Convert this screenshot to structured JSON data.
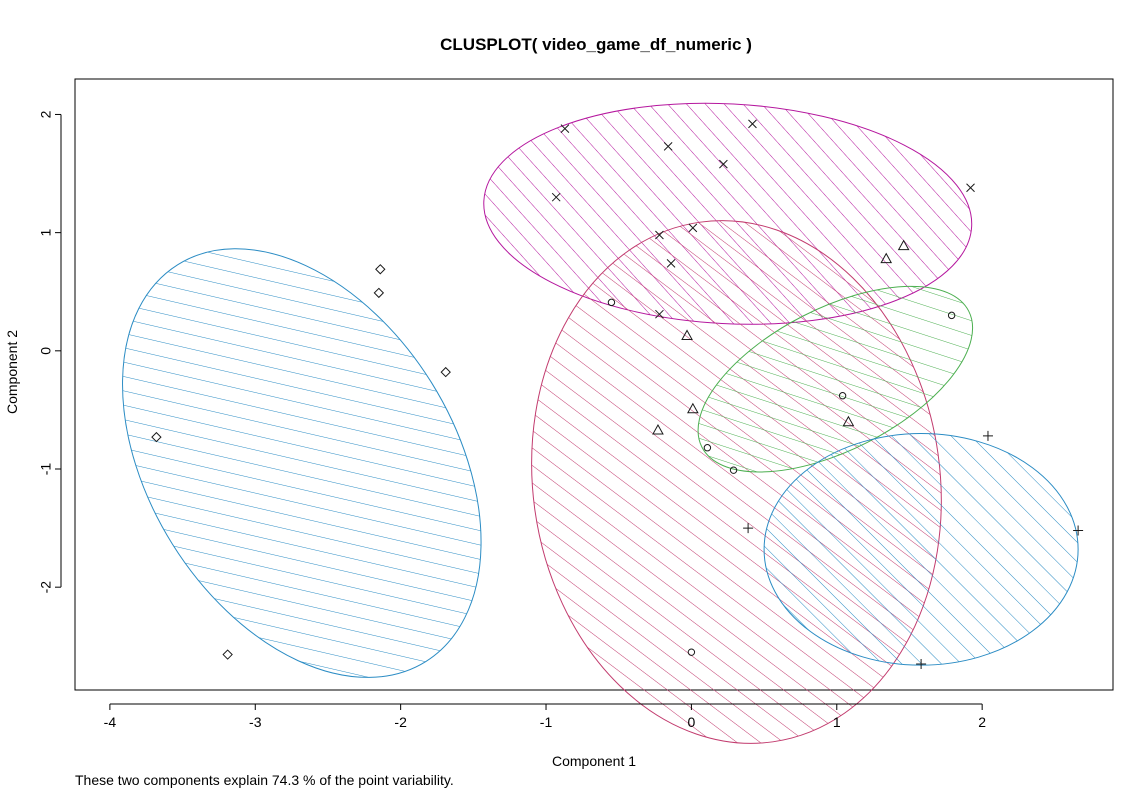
{
  "chart_data": {
    "type": "scatter",
    "title": "CLUSPLOT( video_game_df_numeric )",
    "xlabel": "Component 1",
    "ylabel": "Component 2",
    "footnote": "These two components explain 74.3 % of the point variability.",
    "xlim": [
      -4.24,
      2.9
    ],
    "ylim": [
      -2.87,
      2.3
    ],
    "xticks": [
      -4,
      -3,
      -2,
      -1,
      0,
      1,
      2
    ],
    "yticks": [
      -2,
      -1,
      0,
      1,
      2
    ],
    "xtick_labels": [
      "-4",
      "-3",
      "-2",
      "-1",
      "0",
      "1",
      "2"
    ],
    "ytick_labels": [
      "-2",
      "-1",
      "0",
      "1",
      "2"
    ],
    "grid": false,
    "legend": "none",
    "clusters": [
      {
        "marker": "diamond",
        "color": "#2b8cc4",
        "ellipse": {
          "cx": -2.68,
          "cy": -0.95,
          "rx": 1.05,
          "ry": 1.98,
          "angle_deg": 32
        },
        "points": [
          [
            -2.14,
            0.69
          ],
          [
            -2.15,
            0.49
          ],
          [
            -1.69,
            -0.18
          ],
          [
            -3.68,
            -0.73
          ],
          [
            -3.19,
            -2.57
          ]
        ]
      },
      {
        "marker": "x",
        "color": "#b5179e",
        "ellipse": {
          "cx": 0.25,
          "cy": 1.16,
          "rx": 1.68,
          "ry": 0.93,
          "angle_deg": -3
        },
        "points": [
          [
            -0.87,
            1.88
          ],
          [
            0.42,
            1.92
          ],
          [
            -0.16,
            1.73
          ],
          [
            0.22,
            1.58
          ],
          [
            -0.93,
            1.3
          ],
          [
            1.92,
            1.38
          ],
          [
            -0.22,
            0.98
          ],
          [
            0.01,
            1.04
          ],
          [
            -0.14,
            0.74
          ],
          [
            -0.22,
            0.31
          ]
        ]
      },
      {
        "marker": "circle",
        "color": "#c23b6e",
        "ellipse": {
          "cx": 0.31,
          "cy": -1.11,
          "rx": 1.4,
          "ry": 2.22,
          "angle_deg": 8
        },
        "points": [
          [
            -0.55,
            0.41
          ],
          [
            1.79,
            0.3
          ],
          [
            1.04,
            -0.38
          ],
          [
            0.11,
            -0.82
          ],
          [
            0.29,
            -1.01
          ],
          [
            0.0,
            -2.55
          ]
        ]
      },
      {
        "marker": "triangle",
        "color": "#4caf50",
        "ellipse": {
          "cx": 0.99,
          "cy": -0.24,
          "rx": 1.03,
          "ry": 0.6,
          "angle_deg": 27
        },
        "points": [
          [
            1.46,
            0.89
          ],
          [
            1.34,
            0.78
          ],
          [
            -0.03,
            0.13
          ],
          [
            0.01,
            -0.49
          ],
          [
            -0.23,
            -0.67
          ],
          [
            1.08,
            -0.6
          ]
        ]
      },
      {
        "marker": "plus",
        "color": "#2b8cc4",
        "ellipse": {
          "cx": 1.58,
          "cy": -1.68,
          "rx": 1.08,
          "ry": 0.98,
          "angle_deg": 0
        },
        "points": [
          [
            2.04,
            -0.72
          ],
          [
            0.39,
            -1.5
          ],
          [
            2.66,
            -1.52
          ],
          [
            1.58,
            -2.65
          ]
        ]
      }
    ]
  }
}
